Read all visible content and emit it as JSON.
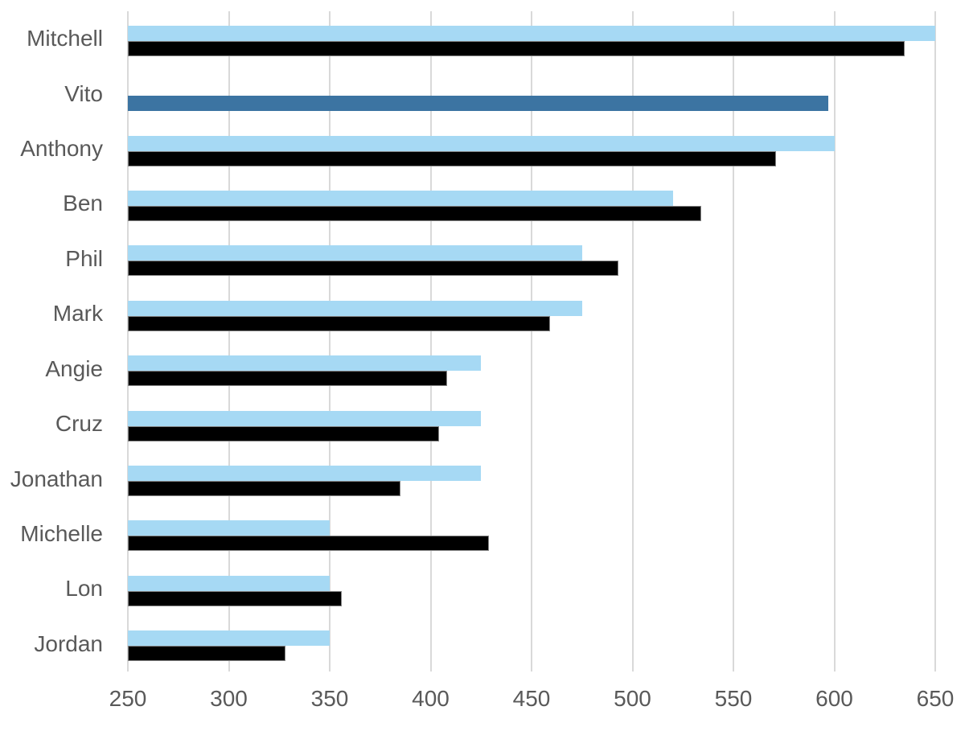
{
  "chart_data": {
    "type": "bar",
    "orientation": "horizontal",
    "title": "",
    "xlabel": "",
    "ylabel": "",
    "categories": [
      "Mitchell",
      "Vito",
      "Anthony",
      "Ben",
      "Phil",
      "Mark",
      "Angie",
      "Cruz",
      "Jonathan",
      "Michelle",
      "Lon",
      "Jordan"
    ],
    "series": [
      {
        "name": "light-blue-series",
        "color": "#A6D9F4",
        "values": [
          650,
          null,
          600,
          520,
          475,
          475,
          425,
          425,
          425,
          350,
          350,
          350
        ]
      },
      {
        "name": "black-series",
        "color": "#000000",
        "values": [
          635,
          597,
          571,
          534,
          493,
          459,
          408,
          404,
          385,
          429,
          356,
          328
        ],
        "point_colors": {
          "1": "#3C74A2"
        }
      }
    ],
    "xlim": [
      250,
      650
    ],
    "xticks": [
      250,
      300,
      350,
      400,
      450,
      500,
      550,
      600,
      650
    ],
    "grid": true,
    "legend": false,
    "colors": {
      "background": "#FFFFFF",
      "gridline": "#D9D9D9",
      "axis_text": "#595959",
      "bar_light_blue": "#A6D9F4",
      "bar_black": "#000000",
      "bar_highlight_blue": "#3C74A2",
      "black_bar_border": "#858585"
    }
  }
}
